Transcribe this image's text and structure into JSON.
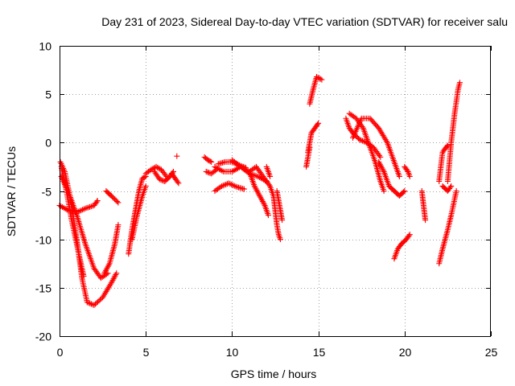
{
  "chart_data": {
    "type": "scatter",
    "title": "Day 231 of 2023, Sidereal Day-to-day VTEC variation (SDTVAR) for receiver salu",
    "xlabel": "GPS time / hours",
    "ylabel": "SDTVAR / TECUs",
    "xlim": [
      0,
      25
    ],
    "ylim": [
      -20,
      10
    ],
    "xticks": [
      0,
      5,
      10,
      15,
      20,
      25
    ],
    "yticks": [
      -20,
      -15,
      -10,
      -5,
      0,
      5,
      10
    ],
    "grid": true,
    "marker": "+",
    "series_color": "#ff0000",
    "tracks": [
      {
        "name": "arc-01",
        "points": [
          [
            0.05,
            -2.0
          ],
          [
            0.3,
            -3.0
          ],
          [
            0.6,
            -5.5
          ],
          [
            1.0,
            -10.0
          ],
          [
            1.3,
            -14.0
          ],
          [
            1.6,
            -16.5
          ],
          [
            2.0,
            -16.8
          ],
          [
            2.5,
            -16.0
          ],
          [
            3.0,
            -14.5
          ],
          [
            3.3,
            -13.5
          ]
        ]
      },
      {
        "name": "arc-02",
        "points": [
          [
            0.1,
            -2.5
          ],
          [
            0.4,
            -5.0
          ],
          [
            0.7,
            -8.0
          ],
          [
            1.0,
            -10.5
          ],
          [
            1.3,
            -13.0
          ],
          [
            1.4,
            -13.8
          ]
        ]
      },
      {
        "name": "arc-03",
        "points": [
          [
            0.1,
            -3.5
          ],
          [
            0.6,
            -5.5
          ],
          [
            1.0,
            -7.5
          ],
          [
            1.5,
            -10.5
          ],
          [
            2.0,
            -13.0
          ],
          [
            2.4,
            -14.0
          ],
          [
            2.8,
            -13.5
          ]
        ]
      },
      {
        "name": "arc-04",
        "points": [
          [
            0.0,
            -6.5
          ],
          [
            0.5,
            -7.0
          ],
          [
            1.0,
            -7.2
          ],
          [
            1.5,
            -6.8
          ],
          [
            2.0,
            -6.5
          ],
          [
            2.2,
            -6.0
          ]
        ]
      },
      {
        "name": "arc-05",
        "points": [
          [
            2.6,
            -13.5
          ],
          [
            2.9,
            -12.5
          ],
          [
            3.2,
            -10.5
          ],
          [
            3.4,
            -8.5
          ]
        ]
      },
      {
        "name": "arc-06",
        "points": [
          [
            2.7,
            -5.0
          ],
          [
            3.0,
            -5.5
          ],
          [
            3.4,
            -6.2
          ]
        ]
      },
      {
        "name": "arc-07",
        "points": [
          [
            4.0,
            -11.5
          ],
          [
            4.2,
            -9.0
          ],
          [
            4.4,
            -7.0
          ],
          [
            4.6,
            -5.0
          ],
          [
            4.8,
            -3.7
          ],
          [
            5.0,
            -3.5
          ]
        ]
      },
      {
        "name": "arc-08",
        "points": [
          [
            4.2,
            -10.0
          ],
          [
            4.5,
            -7.5
          ],
          [
            4.8,
            -5.5
          ],
          [
            5.0,
            -4.5
          ]
        ]
      },
      {
        "name": "arc-09",
        "points": [
          [
            5.0,
            -3.2
          ],
          [
            5.3,
            -2.8
          ],
          [
            5.6,
            -2.5
          ],
          [
            5.9,
            -2.8
          ],
          [
            6.2,
            -3.5
          ]
        ]
      },
      {
        "name": "arc-10",
        "points": [
          [
            5.5,
            -3.0
          ],
          [
            5.8,
            -3.8
          ],
          [
            6.1,
            -4.0
          ],
          [
            6.4,
            -3.5
          ],
          [
            6.6,
            -3.0
          ]
        ]
      },
      {
        "name": "arc-11",
        "points": [
          [
            6.5,
            -3.2
          ],
          [
            6.7,
            -3.7
          ],
          [
            6.9,
            -4.2
          ]
        ]
      },
      {
        "name": "arc-12",
        "points": [
          [
            6.8,
            -1.4
          ]
        ]
      },
      {
        "name": "arc-13",
        "points": [
          [
            8.4,
            -1.5
          ],
          [
            8.6,
            -1.8
          ],
          [
            8.8,
            -2.0
          ]
        ]
      },
      {
        "name": "arc-14",
        "points": [
          [
            8.5,
            -3.0
          ],
          [
            8.8,
            -3.2
          ],
          [
            9.1,
            -2.8
          ]
        ]
      },
      {
        "name": "arc-15",
        "points": [
          [
            9.0,
            -2.5
          ],
          [
            9.5,
            -3.0
          ],
          [
            10.0,
            -3.0
          ],
          [
            10.5,
            -2.5
          ],
          [
            11.0,
            -3.2
          ],
          [
            11.5,
            -3.5
          ],
          [
            12.0,
            -4.0
          ]
        ]
      },
      {
        "name": "arc-16",
        "points": [
          [
            9.2,
            -2.2
          ],
          [
            9.6,
            -2.0
          ],
          [
            10.0,
            -2.0
          ],
          [
            10.5,
            -2.4
          ],
          [
            10.8,
            -2.6
          ]
        ]
      },
      {
        "name": "arc-17",
        "points": [
          [
            9.0,
            -5.0
          ],
          [
            9.4,
            -4.5
          ],
          [
            9.8,
            -4.2
          ],
          [
            10.3,
            -4.6
          ],
          [
            10.7,
            -4.8
          ]
        ]
      },
      {
        "name": "arc-18",
        "points": [
          [
            10.0,
            -1.8
          ],
          [
            10.5,
            -2.5
          ],
          [
            11.0,
            -3.0
          ],
          [
            11.3,
            -4.5
          ],
          [
            11.6,
            -5.5
          ],
          [
            11.9,
            -6.5
          ],
          [
            12.1,
            -7.5
          ]
        ]
      },
      {
        "name": "arc-19",
        "points": [
          [
            11.0,
            -3.0
          ],
          [
            11.4,
            -2.5
          ],
          [
            11.8,
            -3.5
          ],
          [
            12.2,
            -4.5
          ],
          [
            12.4,
            -5.5
          ],
          [
            12.5,
            -7.0
          ],
          [
            12.6,
            -8.5
          ],
          [
            12.7,
            -9.5
          ],
          [
            12.8,
            -10.0
          ]
        ]
      },
      {
        "name": "arc-20",
        "points": [
          [
            12.0,
            -2.5
          ],
          [
            12.1,
            -3.0
          ],
          [
            12.2,
            -3.5
          ]
        ]
      },
      {
        "name": "arc-21",
        "points": [
          [
            12.6,
            -5.0
          ],
          [
            12.7,
            -6.0
          ],
          [
            12.8,
            -7.0
          ],
          [
            12.9,
            -8.0
          ]
        ]
      },
      {
        "name": "arc-22",
        "points": [
          [
            14.3,
            -2.5
          ],
          [
            14.4,
            -1.5
          ],
          [
            14.5,
            -0.5
          ]
        ]
      },
      {
        "name": "arc-23",
        "points": [
          [
            14.4,
            -1.0
          ],
          [
            14.6,
            1.0
          ],
          [
            14.8,
            1.5
          ],
          [
            15.0,
            2.0
          ]
        ]
      },
      {
        "name": "arc-24",
        "points": [
          [
            14.5,
            4.0
          ],
          [
            14.7,
            5.5
          ],
          [
            14.9,
            6.8
          ],
          [
            15.2,
            6.5
          ]
        ]
      },
      {
        "name": "arc-25",
        "points": [
          [
            16.6,
            2.5
          ],
          [
            16.8,
            1.5
          ],
          [
            17.0,
            1.0
          ],
          [
            17.4,
            0.3
          ],
          [
            17.8,
            0.0
          ],
          [
            18.2,
            -0.5
          ],
          [
            18.6,
            -1.5
          ]
        ]
      },
      {
        "name": "arc-26",
        "points": [
          [
            16.8,
            3.0
          ],
          [
            17.2,
            2.5
          ],
          [
            17.6,
            1.5
          ],
          [
            18.0,
            -0.5
          ],
          [
            18.3,
            -2.0
          ],
          [
            18.6,
            -4.0
          ],
          [
            18.8,
            -5.0
          ]
        ]
      },
      {
        "name": "arc-27",
        "points": [
          [
            17.0,
            0.5
          ],
          [
            17.5,
            2.5
          ],
          [
            18.0,
            2.5
          ],
          [
            18.5,
            1.5
          ],
          [
            19.0,
            0.0
          ],
          [
            19.4,
            -2.0
          ],
          [
            19.7,
            -3.5
          ]
        ]
      },
      {
        "name": "arc-28",
        "points": [
          [
            18.5,
            -2.0
          ],
          [
            18.8,
            -3.0
          ],
          [
            19.1,
            -4.5
          ],
          [
            19.4,
            -5.0
          ],
          [
            19.7,
            -5.5
          ],
          [
            20.0,
            -5.0
          ]
        ]
      },
      {
        "name": "arc-29",
        "points": [
          [
            19.4,
            -12.0
          ],
          [
            19.6,
            -11.0
          ],
          [
            19.8,
            -10.5
          ],
          [
            20.1,
            -10.0
          ],
          [
            20.3,
            -9.5
          ]
        ]
      },
      {
        "name": "arc-30",
        "points": [
          [
            20.0,
            -2.5
          ],
          [
            20.2,
            -3.0
          ],
          [
            20.3,
            -3.5
          ]
        ]
      },
      {
        "name": "arc-31",
        "points": [
          [
            21.0,
            -5.0
          ],
          [
            21.1,
            -6.5
          ],
          [
            21.2,
            -8.0
          ]
        ]
      },
      {
        "name": "arc-32",
        "points": [
          [
            22.0,
            -12.5
          ],
          [
            22.2,
            -11.0
          ],
          [
            22.5,
            -9.0
          ],
          [
            22.7,
            -7.5
          ],
          [
            23.0,
            -5.0
          ]
        ]
      },
      {
        "name": "arc-33",
        "points": [
          [
            22.0,
            -4.0
          ],
          [
            22.2,
            -1.0
          ],
          [
            22.4,
            -0.5
          ],
          [
            22.5,
            -0.3
          ]
        ]
      },
      {
        "name": "arc-34",
        "points": [
          [
            22.5,
            -4.0
          ],
          [
            22.7,
            0.0
          ],
          [
            22.9,
            3.0
          ],
          [
            23.1,
            5.5
          ],
          [
            23.2,
            6.2
          ]
        ]
      },
      {
        "name": "arc-35",
        "points": [
          [
            22.2,
            -4.5
          ],
          [
            22.5,
            -5.0
          ],
          [
            22.7,
            -4.5
          ]
        ]
      }
    ]
  }
}
